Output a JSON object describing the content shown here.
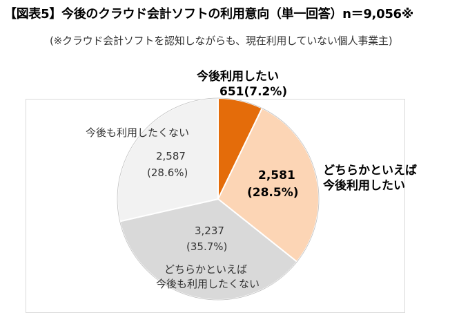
{
  "header": {
    "title": "【図表5】今後のクラウド会計ソフトの利用意向（単一回答）n＝9,056※",
    "subtitle": "(※クラウド会計ソフトを認知しながらも、現在利用していない個人事業主)"
  },
  "chart_data": {
    "type": "pie",
    "title": "今後のクラウド会計ソフトの利用意向（単一回答）",
    "n": 9056,
    "slices": [
      {
        "label": "今後利用したい",
        "value": 651,
        "percent": 7.2,
        "color": "#E46C0A",
        "value_label": "651(7.2%)"
      },
      {
        "label": "どちらかといえば今後利用したい",
        "value": 2581,
        "percent": 28.5,
        "color": "#FCD5B5",
        "value_label": "2,581",
        "percent_label": "(28.5%)"
      },
      {
        "label": "どちらかといえば今後も利用したくない",
        "value": 3237,
        "percent": 35.7,
        "color": "#D9D9D9",
        "value_label": "3,237",
        "percent_label": "(35.7%)"
      },
      {
        "label": "今後も利用したくない",
        "value": 2587,
        "percent": 28.6,
        "color": "#F2F2F2",
        "value_label": "2,587",
        "percent_label": "(28.6%)"
      }
    ],
    "start_angle": "12 o'clock",
    "direction": "clockwise"
  },
  "labels": {
    "s0_name": "今後利用したい",
    "s0_value": "651(7.2%)",
    "s1_name_line1": "どちらかといえば",
    "s1_name_line2": "今後利用したい",
    "s1_value": "2,581",
    "s1_percent": "(28.5%)",
    "s2_value": "3,237",
    "s2_percent": "(35.7%)",
    "s2_name_line1": "どちらかといえば",
    "s2_name_line2": "今後も利用したくない",
    "s3_name": "今後も利用したくない",
    "s3_value": "2,587",
    "s3_percent": "(28.6%)"
  }
}
